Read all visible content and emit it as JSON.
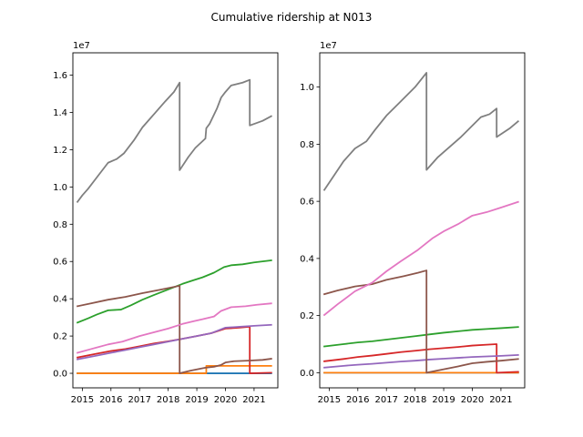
{
  "figure": {
    "title": "Cumulative ridership at N013"
  },
  "chart_data": [
    {
      "type": "line",
      "title": "",
      "xlabel": "",
      "ylabel": "",
      "offset_text": "1e7",
      "xlim": [
        2014.67,
        2021.83
      ],
      "ylim": [
        -780000.0,
        17200000.0
      ],
      "xticks": [
        2015,
        2016,
        2017,
        2018,
        2019,
        2020,
        2021
      ],
      "xtick_labels": [
        "2015",
        "2016",
        "2017",
        "2018",
        "2019",
        "2020",
        "2021"
      ],
      "yticks": [
        0,
        2000000,
        4000000,
        6000000,
        8000000,
        10000000,
        12000000,
        14000000,
        16000000
      ],
      "ytick_labels": [
        "0.0",
        "0.2",
        "0.4",
        "0.6",
        "0.8",
        "1.0",
        "1.2",
        "1.4",
        "1.6"
      ],
      "series": [
        {
          "color": "#1f77b4",
          "points": [
            [
              2014.83,
              0
            ],
            [
              2019.4,
              0
            ],
            [
              2021.6,
              0
            ]
          ]
        },
        {
          "color": "#ff7f0e",
          "points": [
            [
              2014.83,
              0
            ],
            [
              2019.33,
              0
            ],
            [
              2019.33,
              400000
            ],
            [
              2021.6,
              400000
            ]
          ]
        },
        {
          "color": "#2ca02c",
          "points": [
            [
              2014.83,
              2720000
            ],
            [
              2015.2,
              2950000
            ],
            [
              2015.5,
              3150000
            ],
            [
              2015.9,
              3380000
            ],
            [
              2016.35,
              3420000
            ],
            [
              2016.7,
              3650000
            ],
            [
              2017.1,
              3950000
            ],
            [
              2017.5,
              4200000
            ],
            [
              2018.0,
              4500000
            ],
            [
              2018.5,
              4800000
            ],
            [
              2018.85,
              4980000
            ],
            [
              2019.2,
              5150000
            ],
            [
              2019.6,
              5400000
            ],
            [
              2019.95,
              5700000
            ],
            [
              2020.2,
              5800000
            ],
            [
              2020.6,
              5850000
            ],
            [
              2021.0,
              5950000
            ],
            [
              2021.6,
              6060000
            ]
          ]
        },
        {
          "color": "#d62728",
          "points": [
            [
              2014.83,
              850000
            ],
            [
              2015.5,
              1050000
            ],
            [
              2016.0,
              1200000
            ],
            [
              2016.5,
              1300000
            ],
            [
              2017.0,
              1450000
            ],
            [
              2017.5,
              1600000
            ],
            [
              2018.0,
              1720000
            ],
            [
              2018.5,
              1850000
            ],
            [
              2019.0,
              2000000
            ],
            [
              2019.5,
              2150000
            ],
            [
              2020.0,
              2400000
            ],
            [
              2020.5,
              2450000
            ],
            [
              2020.85,
              2500000
            ],
            [
              2020.85,
              0
            ],
            [
              2021.6,
              30000
            ]
          ]
        },
        {
          "color": "#9467bd",
          "points": [
            [
              2014.83,
              750000
            ],
            [
              2015.5,
              950000
            ],
            [
              2016.0,
              1100000
            ],
            [
              2016.5,
              1250000
            ],
            [
              2017.0,
              1400000
            ],
            [
              2017.5,
              1550000
            ],
            [
              2018.0,
              1700000
            ],
            [
              2018.5,
              1850000
            ],
            [
              2019.0,
              2000000
            ],
            [
              2019.5,
              2150000
            ],
            [
              2020.0,
              2450000
            ],
            [
              2020.5,
              2500000
            ],
            [
              2021.0,
              2550000
            ],
            [
              2021.6,
              2600000
            ]
          ]
        },
        {
          "color": "#8c564b",
          "points": [
            [
              2014.83,
              3600000
            ],
            [
              2015.3,
              3750000
            ],
            [
              2015.9,
              3950000
            ],
            [
              2016.5,
              4100000
            ],
            [
              2017.1,
              4300000
            ],
            [
              2017.7,
              4480000
            ],
            [
              2018.25,
              4650000
            ],
            [
              2018.4,
              4700000
            ],
            [
              2018.4,
              0
            ],
            [
              2018.8,
              150000
            ],
            [
              2019.3,
              300000
            ],
            [
              2019.6,
              350000
            ],
            [
              2019.85,
              450000
            ],
            [
              2020.0,
              580000
            ],
            [
              2020.3,
              650000
            ],
            [
              2020.8,
              680000
            ],
            [
              2021.3,
              720000
            ],
            [
              2021.6,
              780000
            ]
          ]
        },
        {
          "color": "#e377c2",
          "points": [
            [
              2014.83,
              1100000
            ],
            [
              2015.3,
              1300000
            ],
            [
              2015.9,
              1550000
            ],
            [
              2016.4,
              1700000
            ],
            [
              2017.0,
              2000000
            ],
            [
              2017.5,
              2200000
            ],
            [
              2018.0,
              2400000
            ],
            [
              2018.5,
              2650000
            ],
            [
              2018.9,
              2800000
            ],
            [
              2019.2,
              2900000
            ],
            [
              2019.6,
              3050000
            ],
            [
              2019.85,
              3350000
            ],
            [
              2020.2,
              3550000
            ],
            [
              2020.7,
              3600000
            ],
            [
              2021.1,
              3680000
            ],
            [
              2021.6,
              3750000
            ]
          ]
        },
        {
          "color": "#7f7f7f",
          "points": [
            [
              2014.83,
              9200000
            ],
            [
              2015.0,
              9550000
            ],
            [
              2015.2,
              9900000
            ],
            [
              2015.5,
              10500000
            ],
            [
              2015.9,
              11300000
            ],
            [
              2016.2,
              11500000
            ],
            [
              2016.45,
              11800000
            ],
            [
              2016.8,
              12500000
            ],
            [
              2017.1,
              13200000
            ],
            [
              2017.5,
              13900000
            ],
            [
              2017.9,
              14600000
            ],
            [
              2018.2,
              15100000
            ],
            [
              2018.4,
              15600000
            ],
            [
              2018.4,
              10900000
            ],
            [
              2018.7,
              11600000
            ],
            [
              2018.95,
              12100000
            ],
            [
              2019.3,
              12600000
            ],
            [
              2019.33,
              13150000
            ],
            [
              2019.45,
              13400000
            ],
            [
              2019.7,
              14200000
            ],
            [
              2019.85,
              14800000
            ],
            [
              2020.0,
              15100000
            ],
            [
              2020.2,
              15450000
            ],
            [
              2020.6,
              15600000
            ],
            [
              2020.85,
              15750000
            ],
            [
              2020.85,
              13300000
            ],
            [
              2021.3,
              13550000
            ],
            [
              2021.6,
              13800000
            ]
          ]
        }
      ]
    },
    {
      "type": "line",
      "title": "",
      "xlabel": "",
      "ylabel": "",
      "offset_text": "1e7",
      "xlim": [
        2014.67,
        2021.83
      ],
      "ylim": [
        -530000.0,
        11200000.0
      ],
      "xticks": [
        2015,
        2016,
        2017,
        2018,
        2019,
        2020,
        2021
      ],
      "xtick_labels": [
        "2015",
        "2016",
        "2017",
        "2018",
        "2019",
        "2020",
        "2021"
      ],
      "yticks": [
        0,
        2000000,
        4000000,
        6000000,
        8000000,
        10000000
      ],
      "ytick_labels": [
        "0.0",
        "0.2",
        "0.4",
        "0.6",
        "0.8",
        "1.0"
      ],
      "series": [
        {
          "color": "#1f77b4",
          "points": [
            [
              2014.83,
              0
            ],
            [
              2021.6,
              0
            ]
          ]
        },
        {
          "color": "#ff7f0e",
          "points": [
            [
              2014.83,
              0
            ],
            [
              2021.6,
              0
            ]
          ]
        },
        {
          "color": "#2ca02c",
          "points": [
            [
              2014.83,
              920000
            ],
            [
              2015.5,
              1000000
            ],
            [
              2016.0,
              1060000
            ],
            [
              2016.5,
              1100000
            ],
            [
              2017.0,
              1160000
            ],
            [
              2017.5,
              1220000
            ],
            [
              2018.0,
              1280000
            ],
            [
              2018.5,
              1340000
            ],
            [
              2019.0,
              1400000
            ],
            [
              2019.5,
              1450000
            ],
            [
              2020.0,
              1500000
            ],
            [
              2020.5,
              1530000
            ],
            [
              2021.0,
              1560000
            ],
            [
              2021.6,
              1600000
            ]
          ]
        },
        {
          "color": "#d62728",
          "points": [
            [
              2014.83,
              400000
            ],
            [
              2015.5,
              480000
            ],
            [
              2016.0,
              550000
            ],
            [
              2016.5,
              600000
            ],
            [
              2017.0,
              660000
            ],
            [
              2017.5,
              720000
            ],
            [
              2018.0,
              770000
            ],
            [
              2018.5,
              820000
            ],
            [
              2019.0,
              860000
            ],
            [
              2019.5,
              900000
            ],
            [
              2020.0,
              950000
            ],
            [
              2020.5,
              980000
            ],
            [
              2020.85,
              1000000
            ],
            [
              2020.85,
              0
            ],
            [
              2021.6,
              30000
            ]
          ]
        },
        {
          "color": "#9467bd",
          "points": [
            [
              2014.83,
              180000
            ],
            [
              2015.5,
              240000
            ],
            [
              2016.0,
              280000
            ],
            [
              2016.5,
              310000
            ],
            [
              2017.0,
              350000
            ],
            [
              2017.5,
              390000
            ],
            [
              2018.0,
              420000
            ],
            [
              2018.5,
              460000
            ],
            [
              2019.0,
              490000
            ],
            [
              2019.5,
              520000
            ],
            [
              2020.0,
              550000
            ],
            [
              2020.5,
              570000
            ],
            [
              2021.0,
              590000
            ],
            [
              2021.6,
              620000
            ]
          ]
        },
        {
          "color": "#8c564b",
          "points": [
            [
              2014.83,
              2750000
            ],
            [
              2015.3,
              2880000
            ],
            [
              2015.9,
              3020000
            ],
            [
              2016.5,
              3100000
            ],
            [
              2017.0,
              3250000
            ],
            [
              2017.6,
              3380000
            ],
            [
              2018.1,
              3500000
            ],
            [
              2018.4,
              3580000
            ],
            [
              2018.4,
              0
            ],
            [
              2018.9,
              100000
            ],
            [
              2019.5,
              220000
            ],
            [
              2020.0,
              330000
            ],
            [
              2020.5,
              380000
            ],
            [
              2021.0,
              420000
            ],
            [
              2021.6,
              480000
            ]
          ]
        },
        {
          "color": "#e377c2",
          "points": [
            [
              2014.83,
              2020000
            ],
            [
              2015.3,
              2400000
            ],
            [
              2015.9,
              2850000
            ],
            [
              2016.5,
              3150000
            ],
            [
              2017.0,
              3550000
            ],
            [
              2017.5,
              3900000
            ],
            [
              2018.1,
              4300000
            ],
            [
              2018.6,
              4700000
            ],
            [
              2019.0,
              4950000
            ],
            [
              2019.5,
              5200000
            ],
            [
              2020.0,
              5500000
            ],
            [
              2020.5,
              5620000
            ],
            [
              2021.0,
              5780000
            ],
            [
              2021.6,
              5980000
            ]
          ]
        },
        {
          "color": "#7f7f7f",
          "points": [
            [
              2014.83,
              6400000
            ],
            [
              2015.1,
              6800000
            ],
            [
              2015.5,
              7400000
            ],
            [
              2015.9,
              7850000
            ],
            [
              2016.3,
              8100000
            ],
            [
              2016.6,
              8500000
            ],
            [
              2017.0,
              9000000
            ],
            [
              2017.5,
              9500000
            ],
            [
              2018.0,
              10000000
            ],
            [
              2018.4,
              10500000
            ],
            [
              2018.4,
              7100000
            ],
            [
              2018.8,
              7550000
            ],
            [
              2019.2,
              7900000
            ],
            [
              2019.6,
              8250000
            ],
            [
              2020.0,
              8650000
            ],
            [
              2020.3,
              8950000
            ],
            [
              2020.6,
              9050000
            ],
            [
              2020.85,
              9250000
            ],
            [
              2020.85,
              8250000
            ],
            [
              2021.3,
              8550000
            ],
            [
              2021.6,
              8800000
            ]
          ]
        }
      ]
    }
  ]
}
